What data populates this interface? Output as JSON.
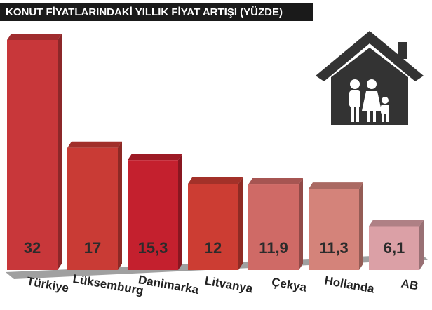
{
  "chart_data": {
    "type": "bar3d",
    "title": "KONUT FİYATLARINDAKİ YILLIK FİYAT ARTIŞI (YÜZDE)",
    "categories": [
      "Türkiye",
      "Lüksemburg",
      "Danimarka",
      "Litvanya",
      "Çekya",
      "Hollanda",
      "AB"
    ],
    "values": [
      32,
      17,
      15.3,
      12,
      11.9,
      11.3,
      6.1
    ],
    "value_labels": [
      "32",
      "17",
      "15,3",
      "12",
      "11,9",
      "11,3",
      "6,1"
    ],
    "colors": [
      "#c8373a",
      "#c93b35",
      "#c4202e",
      "#cc3d33",
      "#cf6a66",
      "#d4837a",
      "#dba0a6"
    ]
  }
}
